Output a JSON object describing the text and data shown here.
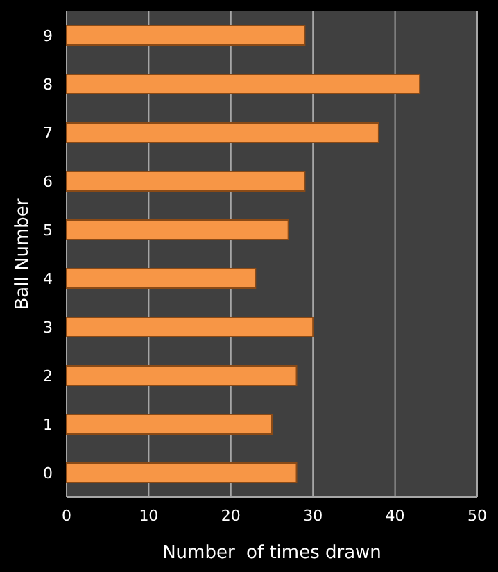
{
  "chart_data": {
    "type": "bar",
    "orientation": "horizontal",
    "xlabel": "Number  of times drawn",
    "ylabel": "Ball Number",
    "categories": [
      "9",
      "8",
      "7",
      "6",
      "5",
      "4",
      "3",
      "2",
      "1",
      "0"
    ],
    "values": [
      29,
      43,
      38,
      29,
      27,
      23,
      30,
      28,
      25,
      28
    ],
    "color": "#f79646",
    "xlim": [
      0,
      50
    ],
    "xticks": [
      0,
      10,
      20,
      30,
      40,
      50
    ],
    "grid": "x"
  }
}
